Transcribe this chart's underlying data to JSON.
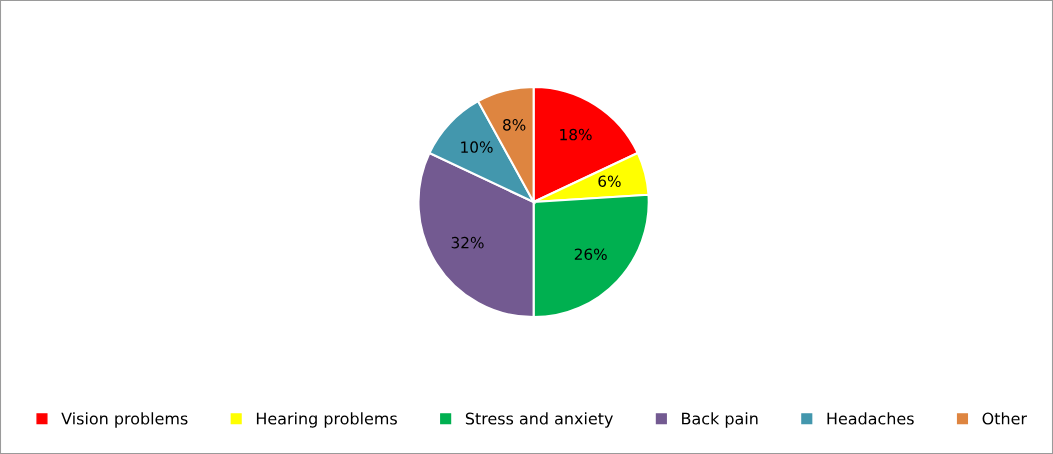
{
  "chart_data": {
    "type": "pie",
    "categories": [
      "Vision problems",
      "Hearing problems",
      "Stress and anxiety",
      "Back pain",
      "Headaches",
      "Other"
    ],
    "values": [
      18,
      6,
      26,
      32,
      10,
      8
    ],
    "colors": [
      "#ff0000",
      "#ffff00",
      "#00b050",
      "#735a91",
      "#4397ad",
      "#de8540"
    ],
    "value_labels": [
      "18%",
      "6%",
      "26%",
      "32%",
      "10%",
      "8%"
    ],
    "legend": "bottom"
  }
}
